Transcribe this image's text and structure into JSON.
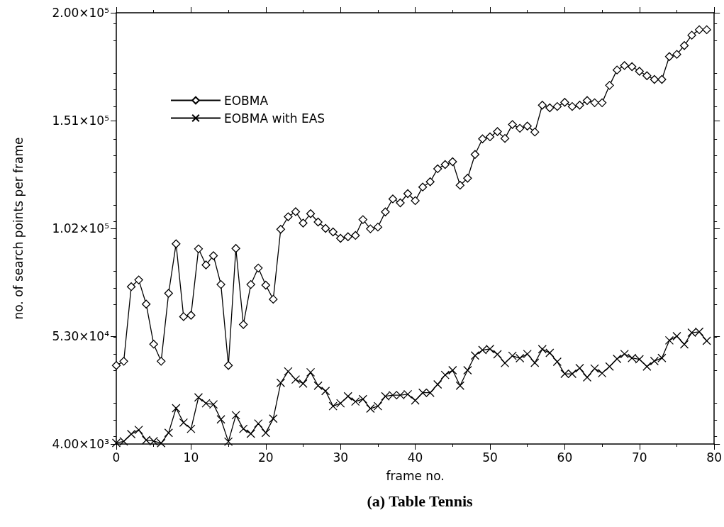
{
  "chart_data": {
    "type": "line",
    "title": "(a) Table Tennis",
    "xlabel": "frame no.",
    "ylabel": "no. of search points per frame",
    "x": [
      0,
      1,
      2,
      3,
      4,
      5,
      6,
      7,
      8,
      9,
      10,
      11,
      12,
      13,
      14,
      15,
      16,
      17,
      18,
      19,
      20,
      21,
      22,
      23,
      24,
      25,
      26,
      27,
      28,
      29,
      30,
      31,
      32,
      33,
      34,
      35,
      36,
      37,
      38,
      39,
      40,
      41,
      42,
      43,
      44,
      45,
      46,
      47,
      48,
      49,
      50,
      51,
      52,
      53,
      54,
      55,
      56,
      57,
      58,
      59,
      60,
      61,
      62,
      63,
      64,
      65,
      66,
      67,
      68,
      69,
      70,
      71,
      72,
      73,
      74,
      75,
      76,
      77,
      78,
      79
    ],
    "series": [
      {
        "name": "EOBMA",
        "color": "#000000",
        "marker": "diamond",
        "values": [
          39700,
          41600,
          75500,
          78600,
          67600,
          49400,
          41600,
          72500,
          95000,
          61900,
          62500,
          92700,
          85400,
          89600,
          76500,
          39700,
          92900,
          58300,
          76500,
          84000,
          76200,
          69800,
          101600,
          107300,
          109600,
          104400,
          108700,
          104900,
          102000,
          100400,
          97500,
          98200,
          98800,
          106000,
          101800,
          102600,
          109500,
          115400,
          113600,
          117800,
          114600,
          120800,
          123200,
          129100,
          131000,
          132300,
          121600,
          124800,
          135600,
          142700,
          143600,
          146000,
          142900,
          149200,
          147500,
          148500,
          145800,
          158000,
          156800,
          157400,
          159300,
          157400,
          158000,
          160100,
          159100,
          159100,
          167000,
          174000,
          176000,
          175500,
          173400,
          171400,
          169700,
          169700,
          180100,
          181100,
          185100,
          189800,
          192300,
          192300
        ]
      },
      {
        "name": "EOBMA with EAS",
        "color": "#000000",
        "marker": "cross",
        "values": [
          4500,
          5200,
          8500,
          10400,
          5800,
          5300,
          4400,
          9100,
          20300,
          13700,
          10900,
          25200,
          22500,
          22000,
          15200,
          5100,
          17100,
          10900,
          8700,
          13300,
          9100,
          15500,
          31800,
          37000,
          33300,
          31500,
          36600,
          30500,
          28100,
          21200,
          22500,
          25700,
          23300,
          24400,
          20100,
          21200,
          25700,
          26200,
          26200,
          26600,
          23800,
          27300,
          27300,
          31100,
          35400,
          37500,
          30500,
          37500,
          44200,
          46700,
          47200,
          44800,
          40800,
          44100,
          43000,
          44900,
          40900,
          47100,
          45400,
          41400,
          35900,
          35900,
          38500,
          34300,
          38300,
          36200,
          39200,
          42700,
          44900,
          43100,
          42500,
          39200,
          41700,
          43100,
          51100,
          53000,
          49300,
          54600,
          55000,
          50900
        ]
      }
    ],
    "xlim": [
      0,
      80
    ],
    "xticks": [
      0,
      10,
      20,
      30,
      40,
      50,
      60,
      70,
      80
    ],
    "ylim": [
      4000,
      200000
    ],
    "yticks": [
      {
        "value": 4000,
        "label": "4.00×10³"
      },
      {
        "value": 53000,
        "label": "5.30×10⁴"
      },
      {
        "value": 102000,
        "label": "1.02×10⁵"
      },
      {
        "value": 151000,
        "label": "1.51×10⁵"
      },
      {
        "value": 200000,
        "label": "2.00×10⁵"
      }
    ],
    "grid": false,
    "legend": "top left",
    "line_style": "solid"
  }
}
